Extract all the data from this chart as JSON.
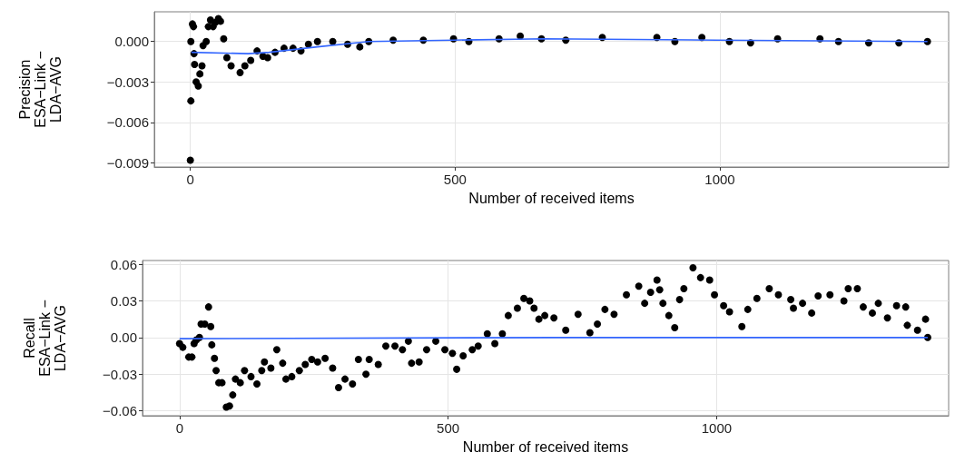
{
  "chart_data": [
    {
      "type": "scatter",
      "xlabel": "Number of received items",
      "ylabel": "Precision\nESA−Link −\nLDA−AVG",
      "xlim": [
        -68,
        1432
      ],
      "xticks": [
        0,
        500,
        1000
      ],
      "ylim": [
        -0.0093,
        0.0022
      ],
      "yticks": [
        {
          "value": -0.009,
          "label": "−0.009"
        },
        {
          "value": -0.006,
          "label": "−0.006"
        },
        {
          "value": -0.003,
          "label": "−0.003"
        },
        {
          "value": 0,
          "label": "0.000"
        }
      ],
      "grid": true,
      "marker": "circle",
      "series": [
        {
          "color": "#000000",
          "x": [
            0,
            1,
            1,
            4,
            6,
            7,
            8,
            11,
            15,
            18,
            22,
            24,
            30,
            34,
            38,
            43,
            47,
            53,
            57,
            63,
            69,
            77,
            94,
            103,
            114,
            126,
            137,
            146,
            160,
            177,
            194,
            209,
            223,
            240,
            269,
            297,
            320,
            337,
            383,
            440,
            497,
            526,
            583,
            623,
            663,
            709,
            778,
            881,
            915,
            966,
            1018,
            1058,
            1109,
            1189,
            1224,
            1281,
            1338,
            1392
          ],
          "values": [
            -0.0088,
            -0.0044,
            0.0,
            0.0013,
            0.0011,
            -0.0009,
            -0.0017,
            -0.003,
            -0.0033,
            -0.0024,
            -0.0018,
            -0.0003,
            0.0,
            0.0011,
            0.0016,
            0.0011,
            0.0014,
            0.0017,
            0.0015,
            0.0002,
            -0.0012,
            -0.0018,
            -0.0023,
            -0.0018,
            -0.0014,
            -0.0007,
            -0.0011,
            -0.0012,
            -0.0008,
            -0.0005,
            -0.0005,
            -0.0007,
            -0.0002,
            0.0,
            0.0,
            -0.0002,
            -0.0004,
            0.0,
            0.0001,
            0.0001,
            0.0002,
            0.0,
            0.0002,
            0.0004,
            0.0002,
            0.0001,
            0.0003,
            0.0003,
            0.0,
            0.0003,
            0.0,
            -0.0001,
            0.0002,
            0.0002,
            0.0,
            -0.0001,
            -0.0001,
            0.0
          ]
        },
        {
          "type": "line",
          "marker": "none",
          "color": "#3366ff",
          "x": [
            2,
            109,
            149,
            240,
            337,
            497,
            669,
            995,
            1392
          ],
          "values": [
            -0.0008,
            -0.0009,
            -0.0008,
            -0.0004,
            0.0,
            0.0001,
            0.0002,
            0.0001,
            0.0
          ]
        }
      ]
    },
    {
      "type": "scatter",
      "xlabel": "Number of received items",
      "ylabel": "Recall\nESA−Link −\nLDA−AVG",
      "xlim": [
        -69,
        1432
      ],
      "xticks": [
        0,
        500,
        1000
      ],
      "ylim": [
        -0.064,
        0.063
      ],
      "yticks": [
        {
          "value": -0.06,
          "label": "−0.06"
        },
        {
          "value": -0.03,
          "label": "−0.03"
        },
        {
          "value": 0,
          "label": "0.00"
        },
        {
          "value": 0.03,
          "label": "0.03"
        },
        {
          "value": 0.06,
          "label": "0.06"
        }
      ],
      "grid": true,
      "marker": "circle",
      "series": [
        {
          "color": "#000000",
          "x": [
            0,
            6,
            17,
            23,
            27,
            31,
            37,
            40,
            47,
            54,
            58,
            60,
            65,
            68,
            73,
            79,
            87,
            93,
            99,
            104,
            113,
            121,
            133,
            144,
            153,
            158,
            170,
            181,
            192,
            198,
            209,
            223,
            234,
            246,
            257,
            271,
            285,
            296,
            308,
            322,
            333,
            347,
            353,
            370,
            384,
            401,
            415,
            426,
            432,
            446,
            460,
            477,
            494,
            508,
            516,
            528,
            545,
            556,
            573,
            587,
            601,
            612,
            629,
            641,
            652,
            660,
            669,
            680,
            697,
            719,
            742,
            764,
            778,
            792,
            809,
            832,
            855,
            866,
            877,
            889,
            894,
            900,
            911,
            922,
            931,
            939,
            956,
            970,
            987,
            996,
            1013,
            1024,
            1047,
            1058,
            1075,
            1098,
            1115,
            1138,
            1143,
            1160,
            1177,
            1189,
            1211,
            1237,
            1245,
            1262,
            1273,
            1290,
            1301,
            1318,
            1335,
            1352,
            1355,
            1374,
            1389,
            1393
          ],
          "values": [
            -0.005,
            -0.008,
            -0.016,
            -0.016,
            -0.005,
            -0.002,
            0.0,
            0.011,
            0.011,
            0.025,
            0.009,
            -0.006,
            -0.017,
            -0.027,
            -0.037,
            -0.037,
            -0.057,
            -0.056,
            -0.047,
            -0.034,
            -0.037,
            -0.027,
            -0.032,
            -0.038,
            -0.027,
            -0.02,
            -0.025,
            -0.01,
            -0.021,
            -0.034,
            -0.032,
            -0.027,
            -0.022,
            -0.018,
            -0.02,
            -0.017,
            -0.025,
            -0.041,
            -0.034,
            -0.038,
            -0.018,
            -0.03,
            -0.018,
            -0.022,
            -0.007,
            -0.007,
            -0.01,
            -0.003,
            -0.021,
            -0.02,
            -0.01,
            -0.003,
            -0.01,
            -0.013,
            -0.026,
            -0.015,
            -0.01,
            -0.007,
            0.003,
            -0.005,
            0.003,
            0.018,
            0.024,
            0.032,
            0.03,
            0.024,
            0.015,
            0.018,
            0.016,
            0.006,
            0.019,
            0.004,
            0.011,
            0.023,
            0.019,
            0.035,
            0.042,
            0.028,
            0.037,
            0.047,
            0.039,
            0.028,
            0.018,
            0.008,
            0.031,
            0.04,
            0.057,
            0.049,
            0.047,
            0.035,
            0.026,
            0.021,
            0.009,
            0.023,
            0.032,
            0.04,
            0.035,
            0.031,
            0.024,
            0.028,
            0.02,
            0.034,
            0.035,
            0.03,
            0.04,
            0.04,
            0.025,
            0.02,
            0.028,
            0.016,
            0.026,
            0.025,
            0.01,
            0.006,
            0.015,
            0.0
          ]
        },
        {
          "type": "line",
          "marker": "none",
          "color": "#3366ff",
          "x": [
            0,
            700,
            1393
          ],
          "values": [
            -0.001,
            0.0,
            0.0
          ]
        }
      ]
    }
  ]
}
